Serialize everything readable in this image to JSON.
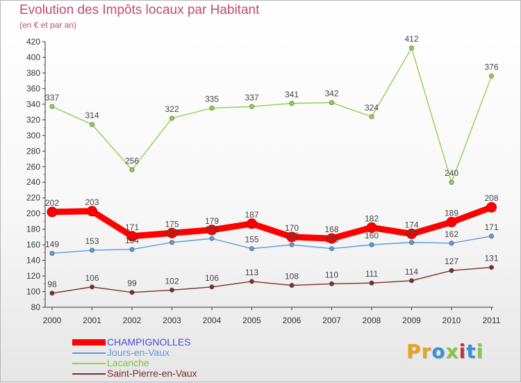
{
  "title": "Evolution des Impôts locaux par Habitant",
  "subtitle": "(en € et par an)",
  "logo": {
    "text": "Proxiti",
    "letter_colors": [
      "#e8a21b",
      "#e8a21b",
      "#3b8ed8",
      "#8bc34a",
      "#c0392b",
      "#3b8ed8",
      "#8bc34a"
    ]
  },
  "chart_data": {
    "type": "line",
    "x": [
      "2000",
      "2001",
      "2002",
      "2003",
      "2004",
      "2005",
      "2006",
      "2007",
      "2008",
      "2009",
      "2010",
      "2011"
    ],
    "ylim": [
      80,
      420
    ],
    "yticks": [
      80,
      100,
      120,
      140,
      160,
      180,
      200,
      220,
      240,
      260,
      280,
      300,
      320,
      340,
      360,
      380,
      400,
      420
    ],
    "grid": false,
    "legend_position": "bottom-left",
    "series": [
      {
        "name": "CHAMPIGNOLLES",
        "values": [
          202,
          203,
          171,
          175,
          179,
          187,
          170,
          168,
          182,
          174,
          189,
          208
        ],
        "labels": [
          "202",
          "203",
          "171",
          "175",
          "179",
          "187",
          "170",
          "168",
          "182",
          "174",
          "189",
          "208"
        ],
        "color": "#ff0000",
        "legend_text_color": "#4a4adf"
      },
      {
        "name": "Jours-en-Vaux",
        "values": [
          149,
          153,
          154,
          163,
          168,
          155,
          160,
          155,
          160,
          163,
          162,
          171
        ],
        "labels": [
          "149",
          "153",
          "154",
          "163",
          "168",
          "155",
          "160",
          "155",
          "160",
          "163",
          "162",
          "171"
        ],
        "color": "#5b9bd5",
        "legend_text_color": "#5b9bd5"
      },
      {
        "name": "Lacanche",
        "values": [
          337,
          314,
          256,
          322,
          335,
          337,
          341,
          342,
          324,
          412,
          240,
          376
        ],
        "labels": [
          "337",
          "314",
          "256",
          "322",
          "335",
          "337",
          "341",
          "342",
          "324",
          "412",
          "240",
          "376"
        ],
        "color": "#92d050",
        "legend_text_color": "#7fc241"
      },
      {
        "name": "Saint-Pierre-en-Vaux",
        "values": [
          98,
          106,
          99,
          102,
          106,
          113,
          108,
          110,
          111,
          114,
          127,
          131
        ],
        "labels": [
          "98",
          "106",
          "99",
          "102",
          "106",
          "113",
          "108",
          "110",
          "111",
          "114",
          "127",
          "131"
        ],
        "color": "#7b2c2c",
        "legend_text_color": "#7b2c2c"
      }
    ]
  }
}
